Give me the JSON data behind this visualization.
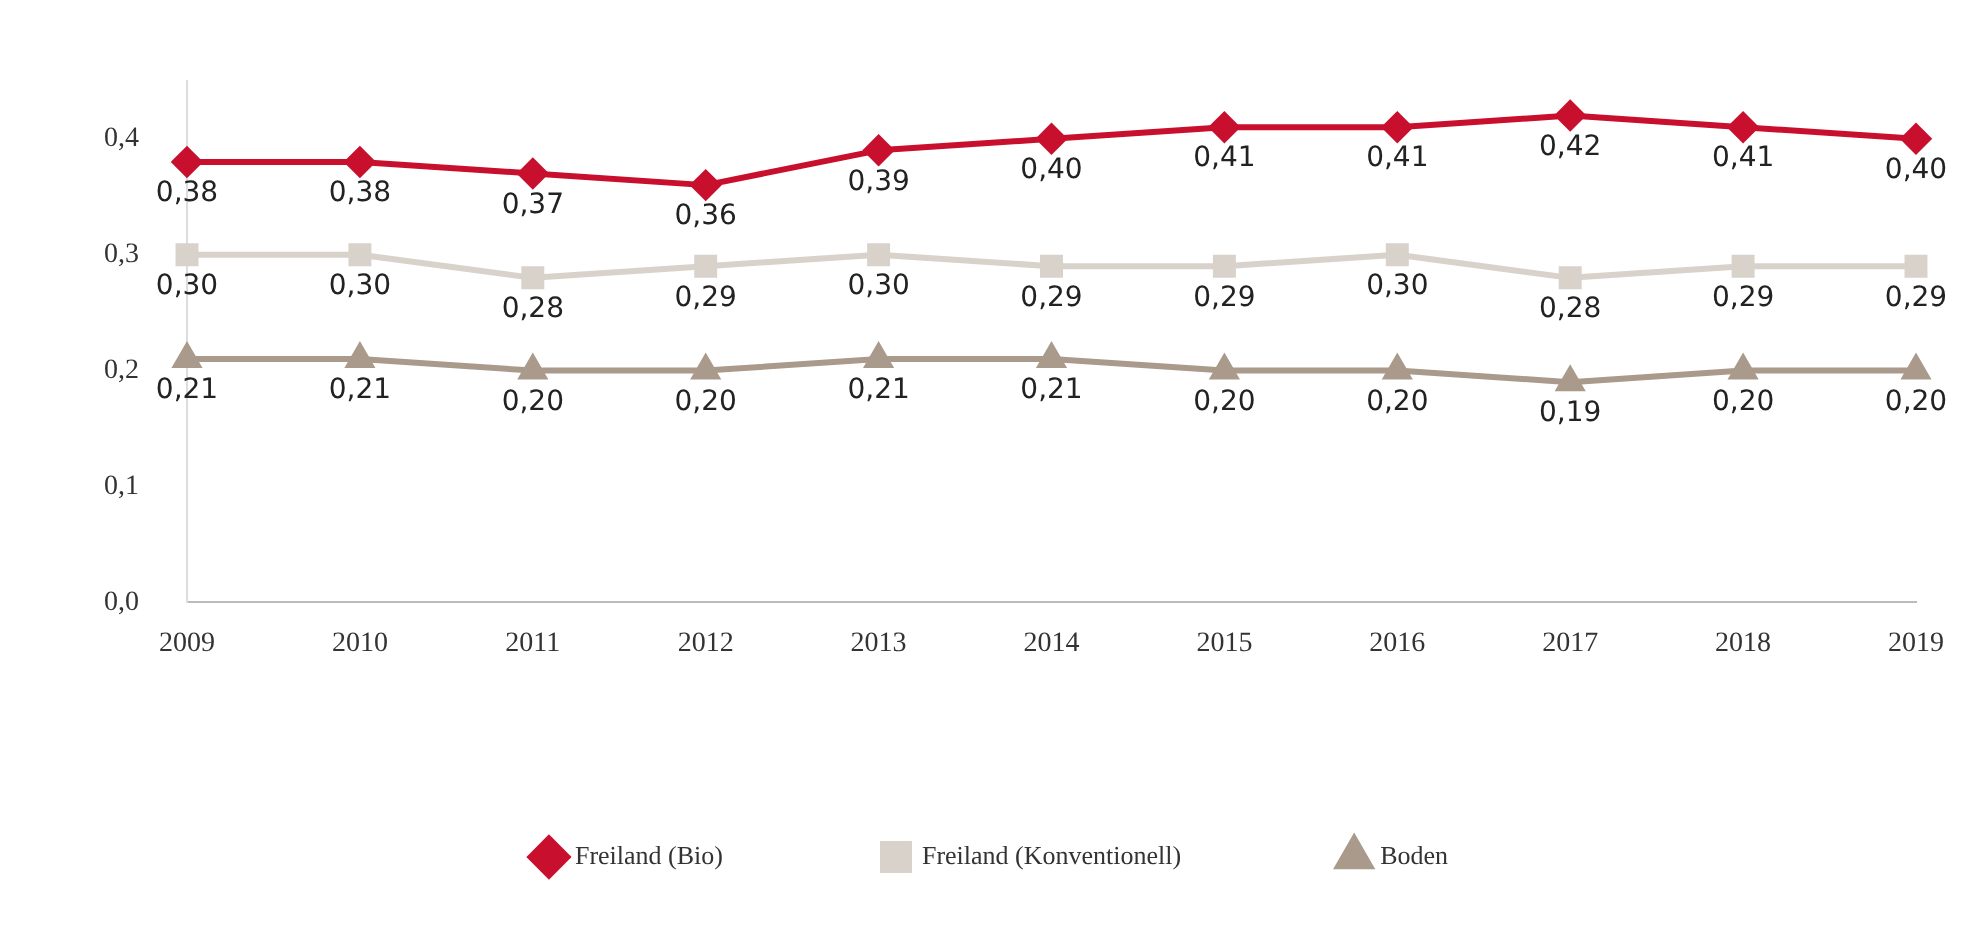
{
  "chart_data": {
    "type": "line",
    "categories": [
      "2009",
      "2010",
      "2011",
      "2012",
      "2013",
      "2014",
      "2015",
      "2016",
      "2017",
      "2018",
      "2019"
    ],
    "series": [
      {
        "name": "Freiland (Bio)",
        "color": "#c8102e",
        "marker": "diamond",
        "values": [
          0.38,
          0.38,
          0.37,
          0.36,
          0.39,
          0.4,
          0.41,
          0.41,
          0.42,
          0.41,
          0.4
        ],
        "value_labels": [
          "0,38",
          "0,38",
          "0,37",
          "0,36",
          "0,39",
          "0,40",
          "0,41",
          "0,41",
          "0,42",
          "0,41",
          "0,40"
        ]
      },
      {
        "name": "Freiland (Konventionell)",
        "color": "#d8d2cb",
        "marker": "square",
        "values": [
          0.3,
          0.3,
          0.28,
          0.29,
          0.3,
          0.29,
          0.29,
          0.3,
          0.28,
          0.29,
          0.29
        ],
        "value_labels": [
          "0,30",
          "0,30",
          "0,28",
          "0,29",
          "0,30",
          "0,29",
          "0,29",
          "0,30",
          "0,28",
          "0,29",
          "0,29"
        ]
      },
      {
        "name": "Boden",
        "color": "#a99a8b",
        "marker": "triangle",
        "values": [
          0.21,
          0.21,
          0.2,
          0.2,
          0.21,
          0.21,
          0.2,
          0.2,
          0.19,
          0.2,
          0.2
        ],
        "value_labels": [
          "0,21",
          "0,21",
          "0,20",
          "0,20",
          "0,21",
          "0,21",
          "0,20",
          "0,20",
          "0,19",
          "0,20",
          "0,20"
        ]
      }
    ],
    "ylim": [
      0,
      0.45
    ],
    "yticks": [
      {
        "value": 0,
        "label": "0,0"
      },
      {
        "value": 0.1,
        "label": "0,1"
      },
      {
        "value": 0.2,
        "label": "0,2"
      },
      {
        "value": 0.3,
        "label": "0,3"
      },
      {
        "value": 0.4,
        "label": "0,4"
      }
    ],
    "grid": false,
    "legend": "bottom"
  }
}
